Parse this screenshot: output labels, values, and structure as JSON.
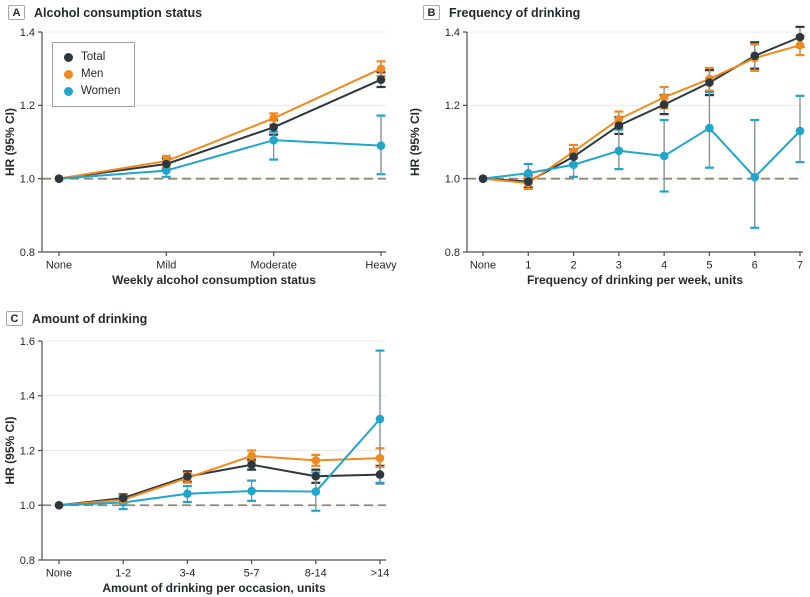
{
  "figure": {
    "colors": {
      "grid": "#e9e9e7",
      "reference": "#8e8775",
      "error_stem": "#879095",
      "axis": "#4a4e50",
      "text": "#26292b"
    },
    "legend": {
      "items": [
        {
          "label": "Total",
          "color": "#2c383d"
        },
        {
          "label": "Men",
          "color": "#f08a1e"
        },
        {
          "label": "Women",
          "color": "#20a6cb"
        }
      ]
    }
  },
  "chart_data": [
    {
      "type": "line",
      "panel_label": "A",
      "title": "Alcohol consumption status",
      "xlabel": "Weekly alcohol consumption status",
      "ylabel": "HR (95% CI)",
      "ylim": [
        0.8,
        1.4
      ],
      "yticks": [
        0.8,
        1.0,
        1.2,
        1.4
      ],
      "reference_y": 1.0,
      "grid": true,
      "legend_position": "inside-top-left",
      "categories": [
        "None",
        "Mild",
        "Moderate",
        "Heavy"
      ],
      "series": [
        {
          "name": "Total",
          "color": "#2c383d",
          "values": [
            1.0,
            1.04,
            1.14,
            1.27
          ],
          "ci_low": [
            1.0,
            1.025,
            1.12,
            1.25
          ],
          "ci_high": [
            1.0,
            1.055,
            1.16,
            1.29
          ]
        },
        {
          "name": "Men",
          "color": "#f08a1e",
          "values": [
            1.0,
            1.048,
            1.165,
            1.3
          ],
          "ci_low": [
            1.0,
            1.03,
            1.148,
            1.28
          ],
          "ci_high": [
            1.0,
            1.062,
            1.178,
            1.32
          ]
        },
        {
          "name": "Women",
          "color": "#20a6cb",
          "values": [
            1.0,
            1.022,
            1.105,
            1.09
          ],
          "ci_low": [
            1.0,
            1.005,
            1.052,
            1.012
          ],
          "ci_high": [
            1.0,
            1.038,
            1.128,
            1.172
          ]
        }
      ]
    },
    {
      "type": "line",
      "panel_label": "B",
      "title": "Frequency of drinking",
      "xlabel": "Frequency of drinking per week, units",
      "ylabel": "HR (95% CI)",
      "ylim": [
        0.8,
        1.4
      ],
      "yticks": [
        0.8,
        1.0,
        1.2,
        1.4
      ],
      "reference_y": 1.0,
      "grid": true,
      "legend_position": "none",
      "categories": [
        "None",
        "1",
        "2",
        "3",
        "4",
        "5",
        "6",
        "7"
      ],
      "series": [
        {
          "name": "Total",
          "color": "#2c383d",
          "values": [
            1.0,
            0.992,
            1.06,
            1.145,
            1.202,
            1.262,
            1.335,
            1.386
          ],
          "ci_low": [
            1.0,
            0.976,
            1.04,
            1.122,
            1.176,
            1.228,
            1.3,
            1.36
          ],
          "ci_high": [
            1.0,
            1.008,
            1.08,
            1.168,
            1.228,
            1.296,
            1.372,
            1.414
          ]
        },
        {
          "name": "Men",
          "color": "#f08a1e",
          "values": [
            1.0,
            0.988,
            1.074,
            1.162,
            1.222,
            1.272,
            1.329,
            1.364
          ],
          "ci_low": [
            1.0,
            0.972,
            1.055,
            1.14,
            1.192,
            1.24,
            1.294,
            1.337
          ],
          "ci_high": [
            1.0,
            1.004,
            1.092,
            1.183,
            1.25,
            1.302,
            1.366,
            1.39
          ]
        },
        {
          "name": "Women",
          "color": "#20a6cb",
          "values": [
            1.0,
            1.015,
            1.038,
            1.076,
            1.062,
            1.138,
            1.004,
            1.13
          ],
          "ci_low": [
            1.0,
            0.99,
            1.005,
            1.026,
            0.965,
            1.03,
            0.866,
            1.045
          ],
          "ci_high": [
            1.0,
            1.04,
            1.07,
            1.134,
            1.16,
            1.236,
            1.16,
            1.226
          ]
        }
      ]
    },
    {
      "type": "line",
      "panel_label": "C",
      "title": "Amount of drinking",
      "xlabel": "Amount of drinking per occasion, units",
      "ylabel": "HR (95% CI)",
      "ylim": [
        0.8,
        1.6
      ],
      "yticks": [
        0.8,
        1.0,
        1.2,
        1.4,
        1.6
      ],
      "reference_y": 1.0,
      "grid": true,
      "legend_position": "none",
      "categories": [
        "None",
        "1-2",
        "3-4",
        "5-7",
        "8-14",
        ">14"
      ],
      "series": [
        {
          "name": "Total",
          "color": "#2c383d",
          "values": [
            1.0,
            1.026,
            1.105,
            1.148,
            1.106,
            1.112
          ],
          "ci_low": [
            1.0,
            1.012,
            1.086,
            1.13,
            1.082,
            1.08
          ],
          "ci_high": [
            1.0,
            1.04,
            1.124,
            1.166,
            1.13,
            1.144
          ]
        },
        {
          "name": "Men",
          "color": "#f08a1e",
          "values": [
            1.0,
            1.02,
            1.1,
            1.18,
            1.164,
            1.172
          ],
          "ci_low": [
            1.0,
            1.002,
            1.082,
            1.16,
            1.144,
            1.14
          ],
          "ci_high": [
            1.0,
            1.036,
            1.118,
            1.2,
            1.184,
            1.208
          ]
        },
        {
          "name": "Women",
          "color": "#20a6cb",
          "values": [
            1.0,
            1.01,
            1.042,
            1.052,
            1.05,
            1.315
          ],
          "ci_low": [
            1.0,
            0.986,
            1.012,
            1.016,
            0.98,
            1.082
          ],
          "ci_high": [
            1.0,
            1.034,
            1.07,
            1.09,
            1.12,
            1.565
          ]
        }
      ]
    }
  ]
}
